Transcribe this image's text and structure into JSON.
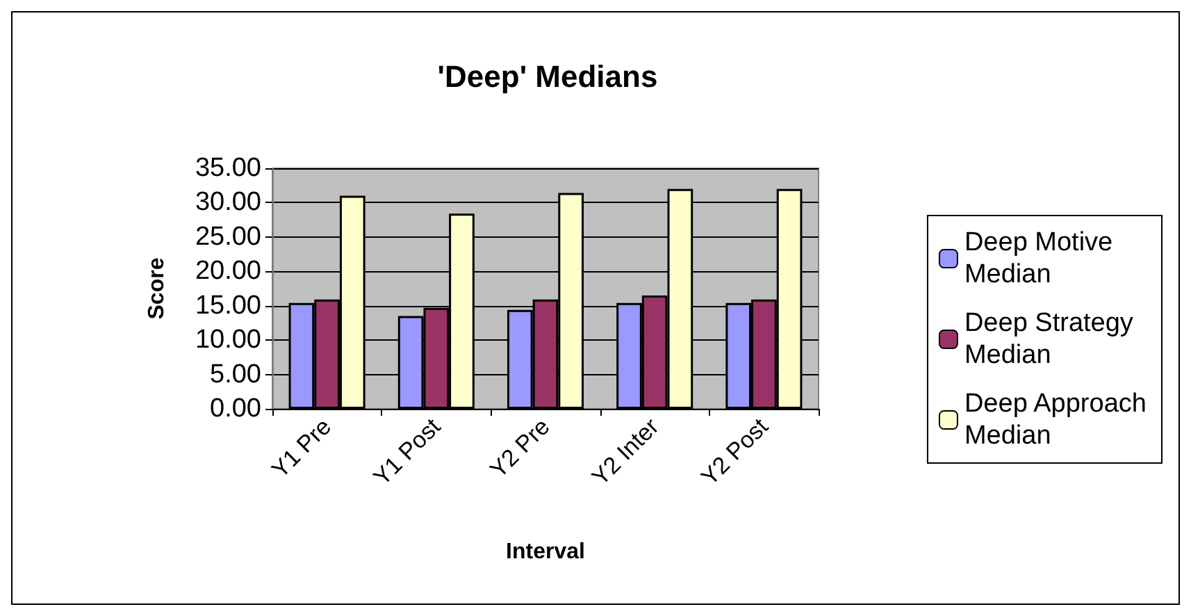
{
  "chart_data": {
    "type": "bar",
    "title": "'Deep' Medians",
    "xlabel": "Interval",
    "ylabel": "Score",
    "categories": [
      "Y1 Pre",
      "Y1 Post",
      "Y2 Pre",
      "Y2 Inter",
      "Y2 Post"
    ],
    "series": [
      {
        "name": "Deep Motive\nMedian",
        "color": "#9999ff",
        "values": [
          15.4,
          13.5,
          14.4,
          15.4,
          15.4
        ]
      },
      {
        "name": "Deep Strategy\nMedian",
        "color": "#993366",
        "values": [
          15.9,
          14.7,
          15.9,
          16.5,
          15.9
        ]
      },
      {
        "name": "Deep Approach\nMedian",
        "color": "#ffffcc",
        "values": [
          31.0,
          28.4,
          31.4,
          32.0,
          32.0
        ]
      }
    ],
    "ylim": [
      0,
      35
    ],
    "yticks": [
      {
        "value": 0,
        "label": "0.00"
      },
      {
        "value": 5,
        "label": "5.00"
      },
      {
        "value": 10,
        "label": "10.00"
      },
      {
        "value": 15,
        "label": "15.00"
      },
      {
        "value": 20,
        "label": "20.00"
      },
      {
        "value": 25,
        "label": "25.00"
      },
      {
        "value": 30,
        "label": "30.00"
      },
      {
        "value": 35,
        "label": "35.00"
      }
    ],
    "grid": "y",
    "legend": "right"
  }
}
